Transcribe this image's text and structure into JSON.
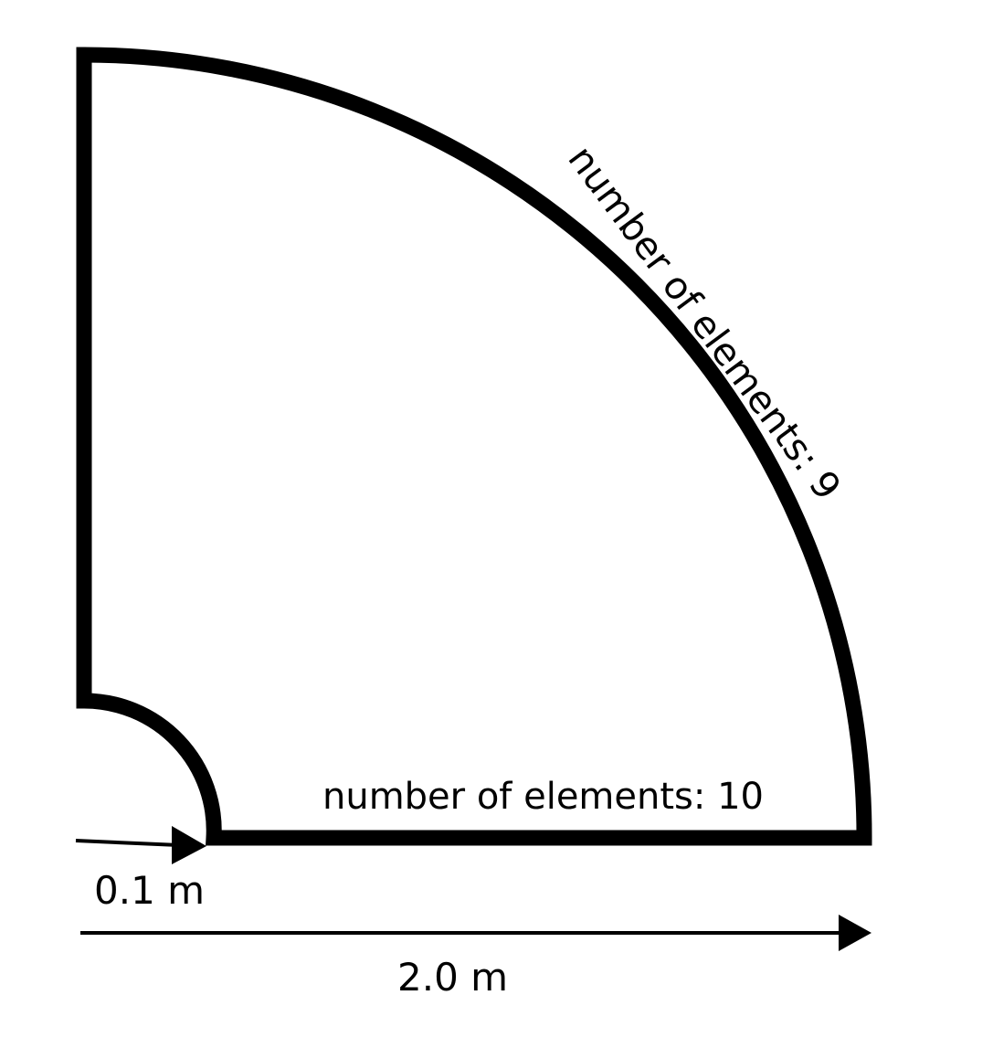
{
  "diagram": {
    "arc_label": "number of elements: 9",
    "bottom_edge_label": "number of elements: 10",
    "inner_radius_label": "0.1 m",
    "outer_radius_label": "2.0 m"
  },
  "colors": {
    "stroke": "#000000",
    "background": "#ffffff"
  }
}
